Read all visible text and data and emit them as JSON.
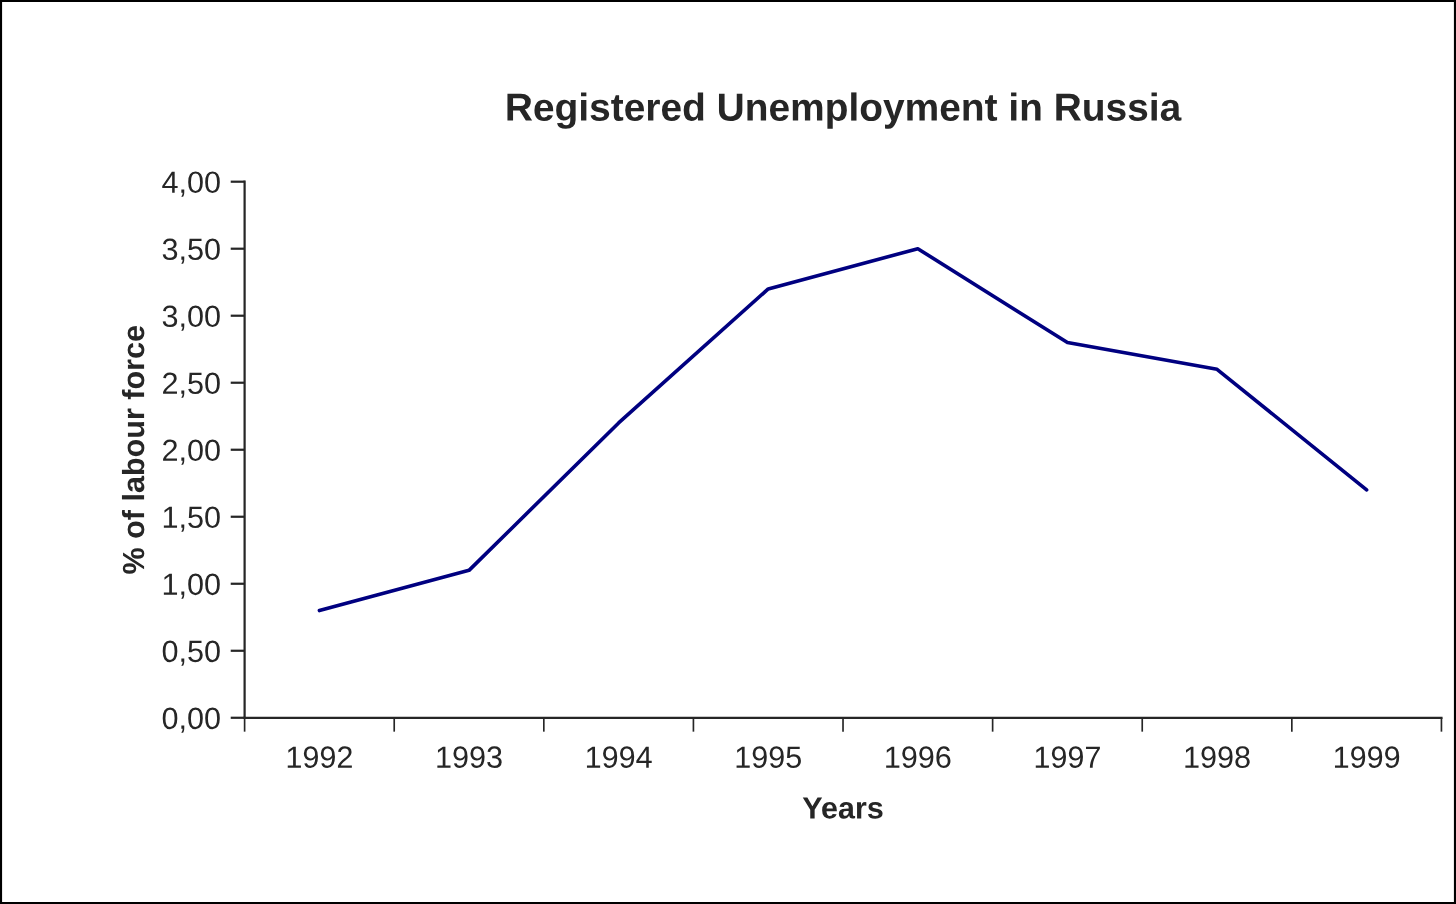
{
  "chart_data": {
    "type": "line",
    "title": "Registered Unemployment in Russia",
    "xlabel": "Years",
    "ylabel": "% of labour force",
    "categories": [
      "1992",
      "1993",
      "1994",
      "1995",
      "1996",
      "1997",
      "1998",
      "1999"
    ],
    "series": [
      {
        "color": "#000080",
        "values": [
          0.8,
          1.1,
          2.2,
          3.2,
          3.5,
          2.8,
          2.6,
          1.7
        ]
      }
    ],
    "ylim": [
      0,
      4
    ],
    "yticks": [
      {
        "value": 0,
        "label": "0,00"
      },
      {
        "value": 0.5,
        "label": "0,50"
      },
      {
        "value": 1,
        "label": "1,00"
      },
      {
        "value": 1.5,
        "label": "1,50"
      },
      {
        "value": 2,
        "label": "2,00"
      },
      {
        "value": 2.5,
        "label": "2,50"
      },
      {
        "value": 3,
        "label": "3,00"
      },
      {
        "value": 3.5,
        "label": "3,50"
      },
      {
        "value": 4,
        "label": "4,00"
      }
    ],
    "grid": false,
    "legend": false,
    "marker": "none",
    "line_style": "solid"
  }
}
